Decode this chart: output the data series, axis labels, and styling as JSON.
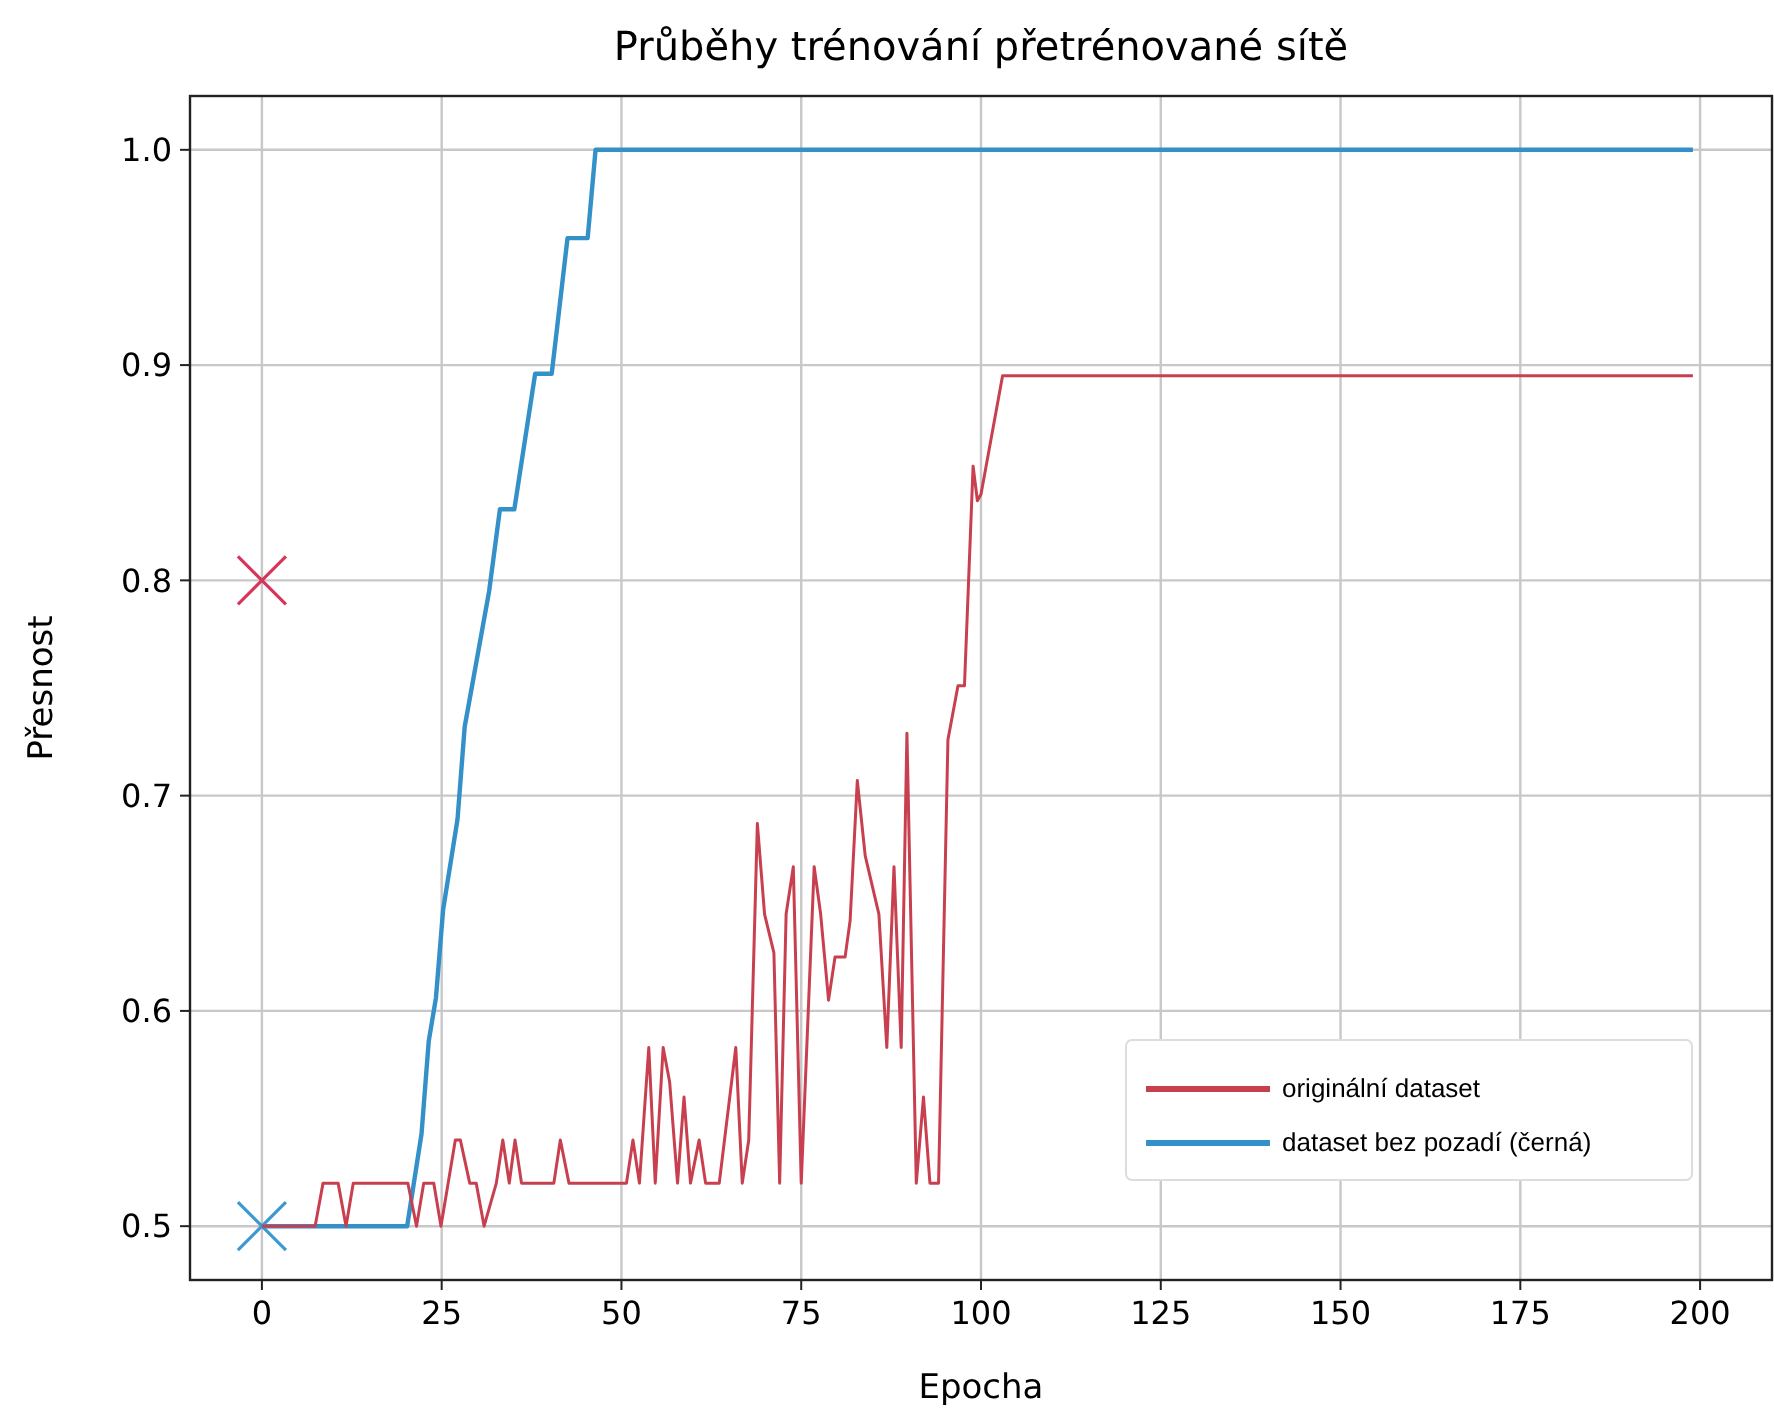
{
  "chart_data": {
    "type": "line",
    "title": "Průběhy trénování přetrénované sítě",
    "xlabel": "Epocha",
    "ylabel": "Přesnost",
    "xlim": [
      -10,
      210
    ],
    "xticks": [
      0,
      25,
      50,
      75,
      100,
      125,
      150,
      175,
      200
    ],
    "ylim": [
      0.475,
      1.025
    ],
    "yticks": [
      0.5,
      0.6,
      0.7,
      0.8,
      0.9,
      {
        "value": 1,
        "label": "1.0"
      }
    ],
    "grid": true,
    "legend": "bottom right",
    "line_style": "solid",
    "marker": "none",
    "series": [
      {
        "name": "originální dataset",
        "color": "#c8404f",
        "x": [
          0,
          7.4,
          8.5,
          10.6,
          11.7,
          12.7,
          20.3,
          21.5,
          22.5,
          23.9,
          24.9,
          26.9,
          27.6,
          28.9,
          29.8,
          30.9,
          32.6,
          33.5,
          34.4,
          35.2,
          36.1,
          40.6,
          41.5,
          42.7,
          50.7,
          51.6,
          52.5,
          53.8,
          54.7,
          55.8,
          56.7,
          57.8,
          58.7,
          59.6,
          60.8,
          61.7,
          63.6,
          65.9,
          66.8,
          67.7,
          68.9,
          69.9,
          71.2,
          72,
          72.9,
          73.9,
          75,
          76.8,
          77.7,
          78.8,
          79.7,
          81.1,
          81.8,
          82.8,
          83.9,
          85.8,
          86.9,
          87.9,
          88.9,
          89.7,
          91,
          92,
          92.9,
          94.1,
          95.4,
          96.8,
          97.7,
          98.9,
          99.5,
          100,
          103,
          199
        ],
        "values": [
          0.5,
          0.5,
          0.52,
          0.52,
          0.5,
          0.52,
          0.52,
          0.5,
          0.52,
          0.52,
          0.5,
          0.54,
          0.54,
          0.52,
          0.52,
          0.5,
          0.52,
          0.54,
          0.52,
          0.54,
          0.52,
          0.52,
          0.54,
          0.52,
          0.52,
          0.54,
          0.52,
          0.583,
          0.52,
          0.583,
          0.567,
          0.52,
          0.56,
          0.52,
          0.54,
          0.52,
          0.52,
          0.583,
          0.52,
          0.54,
          0.687,
          0.645,
          0.627,
          0.52,
          0.645,
          0.667,
          0.52,
          0.667,
          0.645,
          0.605,
          0.625,
          0.625,
          0.642,
          0.707,
          0.672,
          0.645,
          0.583,
          0.667,
          0.583,
          0.729,
          0.52,
          0.56,
          0.52,
          0.52,
          0.726,
          0.751,
          0.751,
          0.853,
          0.837,
          0.84,
          0.895,
          0.895
        ]
      },
      {
        "name": "dataset bez pozadí (černá)",
        "color": "#3390c8",
        "x": [
          0,
          20.2,
          22.2,
          23.2,
          24.2,
          25.2,
          27.2,
          28.2,
          31.6,
          33.1,
          35.1,
          38,
          40.3,
          41,
          42.5,
          45.3,
          46.4,
          199
        ],
        "values": [
          0.5,
          0.5,
          0.543,
          0.586,
          0.606,
          0.647,
          0.689,
          0.732,
          0.795,
          0.833,
          0.833,
          0.896,
          0.896,
          0.916,
          0.959,
          0.959,
          1,
          1
        ]
      },
      {
        "type": "scatter",
        "marker": "cross",
        "color": "#d6365a",
        "x": [
          0
        ],
        "values": [
          0.8
        ]
      },
      {
        "type": "scatter",
        "marker": "cross",
        "color": "#3d9ad0",
        "x": [
          0
        ],
        "values": [
          0.5
        ]
      }
    ]
  }
}
